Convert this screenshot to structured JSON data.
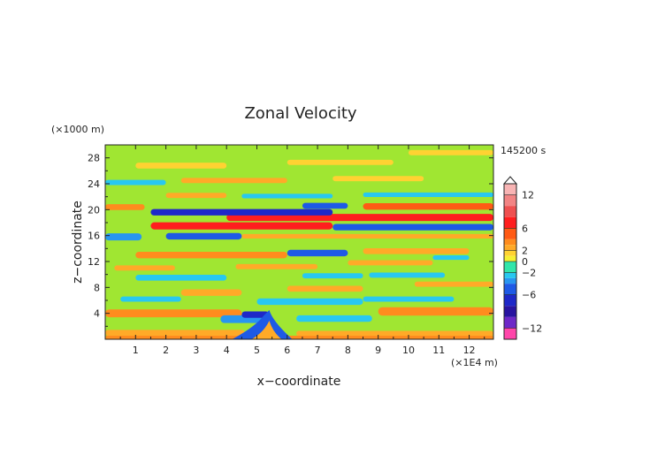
{
  "chart_data": {
    "type": "heatmap",
    "title": "Zonal Velocity",
    "xlabel": "x−coordinate",
    "ylabel": "z−coordinate",
    "x_unit": "(×1E4 m)",
    "y_unit": "(×1000 m)",
    "time_label": "145200 s",
    "xlim": [
      0,
      12.8
    ],
    "ylim": [
      0,
      30
    ],
    "x_ticks": [
      "1",
      "2",
      "3",
      "4",
      "5",
      "6",
      "7",
      "8",
      "9",
      "10",
      "11",
      "12"
    ],
    "y_ticks": [
      "4",
      "8",
      "12",
      "16",
      "20",
      "24",
      "28"
    ],
    "colorbar": {
      "range": [
        -14,
        14
      ],
      "labels": [
        "12",
        "6",
        "2",
        "0",
        "−2",
        "−6",
        "−12"
      ],
      "levels": [
        {
          "lo": 12,
          "hi": 14,
          "color": "#f8b4b4"
        },
        {
          "lo": 10,
          "hi": 12,
          "color": "#f28484"
        },
        {
          "lo": 8,
          "hi": 10,
          "color": "#ee5050"
        },
        {
          "lo": 6,
          "hi": 8,
          "color": "#ff1e1e"
        },
        {
          "lo": 4,
          "hi": 6,
          "color": "#ff5a14"
        },
        {
          "lo": 3,
          "hi": 4,
          "color": "#ff8c1e"
        },
        {
          "lo": 2,
          "hi": 3,
          "color": "#ffaa28"
        },
        {
          "lo": 1,
          "hi": 2,
          "color": "#ffd232"
        },
        {
          "lo": 0,
          "hi": 1,
          "color": "#f5f032"
        },
        {
          "lo": -1,
          "hi": 0,
          "color": "#a0e632"
        },
        {
          "lo": -2,
          "hi": 0,
          "color": "#32e6aa"
        },
        {
          "lo": -3,
          "hi": -2,
          "color": "#28c8f0"
        },
        {
          "lo": -4,
          "hi": -3,
          "color": "#2896f0"
        },
        {
          "lo": -6,
          "hi": -4,
          "color": "#1e5ae6"
        },
        {
          "lo": -8,
          "hi": -6,
          "color": "#1e28c8"
        },
        {
          "lo": -10,
          "hi": -8,
          "color": "#2814a0"
        },
        {
          "lo": -12,
          "hi": -10,
          "color": "#6e28c8"
        },
        {
          "lo": -14,
          "hi": -12,
          "color": "#ff46aa"
        }
      ]
    },
    "bands": [
      {
        "x0": 0,
        "x1": 12.8,
        "z": 0.3,
        "h": 0.5,
        "v": 3
      },
      {
        "x0": 0,
        "x1": 4.6,
        "z": 1.0,
        "h": 0.9,
        "v": 2.5
      },
      {
        "x0": 6.3,
        "x1": 12.8,
        "z": 0.9,
        "h": 0.8,
        "v": 2.5
      },
      {
        "x0": 0,
        "x1": 4.5,
        "z": 4.0,
        "h": 1.2,
        "v": 3
      },
      {
        "x0": 9.0,
        "x1": 12.8,
        "z": 4.3,
        "h": 1.3,
        "v": 3
      },
      {
        "x0": 3.8,
        "x1": 5.3,
        "z": 3.1,
        "h": 1.2,
        "v": -3.5
      },
      {
        "x0": 4.5,
        "x1": 5.4,
        "z": 3.8,
        "h": 1.0,
        "v": -7
      },
      {
        "x0": 6.3,
        "x1": 8.8,
        "z": 3.2,
        "h": 1.0,
        "v": -2.5
      },
      {
        "x0": 0.5,
        "x1": 2.5,
        "z": 6.2,
        "h": 0.8,
        "v": -2.5
      },
      {
        "x0": 5.0,
        "x1": 8.5,
        "z": 5.8,
        "h": 1.0,
        "v": -2.5
      },
      {
        "x0": 8.5,
        "x1": 11.5,
        "z": 6.2,
        "h": 0.8,
        "v": -2.5
      },
      {
        "x0": 2.5,
        "x1": 4.5,
        "z": 7.2,
        "h": 1.0,
        "v": 2.5
      },
      {
        "x0": 6.0,
        "x1": 8.5,
        "z": 7.8,
        "h": 0.9,
        "v": 2.5
      },
      {
        "x0": 10.2,
        "x1": 12.8,
        "z": 8.5,
        "h": 0.8,
        "v": 2.5
      },
      {
        "x0": 1.0,
        "x1": 4.0,
        "z": 9.5,
        "h": 0.9,
        "v": -2.5
      },
      {
        "x0": 6.5,
        "x1": 8.5,
        "z": 9.8,
        "h": 0.8,
        "v": -2.5
      },
      {
        "x0": 8.7,
        "x1": 11.2,
        "z": 9.9,
        "h": 0.8,
        "v": -2.5
      },
      {
        "x0": 0.3,
        "x1": 2.3,
        "z": 11.0,
        "h": 0.8,
        "v": 2.5
      },
      {
        "x0": 4.3,
        "x1": 7.0,
        "z": 11.2,
        "h": 0.8,
        "v": 2.5
      },
      {
        "x0": 8.0,
        "x1": 10.8,
        "z": 11.8,
        "h": 0.8,
        "v": 2.5
      },
      {
        "x0": 1.0,
        "x1": 6.0,
        "z": 13.0,
        "h": 1.0,
        "v": 3
      },
      {
        "x0": 6.0,
        "x1": 8.0,
        "z": 13.3,
        "h": 1.0,
        "v": -6
      },
      {
        "x0": 8.5,
        "x1": 12.0,
        "z": 13.6,
        "h": 0.9,
        "v": 2.5
      },
      {
        "x0": 10.8,
        "x1": 12.0,
        "z": 12.6,
        "h": 0.7,
        "v": -2.5
      },
      {
        "x0": 0,
        "x1": 1.2,
        "z": 15.8,
        "h": 1.1,
        "v": -4
      },
      {
        "x0": 2.0,
        "x1": 4.5,
        "z": 15.9,
        "h": 1.0,
        "v": -5
      },
      {
        "x0": 4.5,
        "x1": 12.8,
        "z": 15.9,
        "h": 0.7,
        "v": 2.5
      },
      {
        "x0": 1.5,
        "x1": 7.5,
        "z": 17.5,
        "h": 1.1,
        "v": 6
      },
      {
        "x0": 7.5,
        "x1": 12.8,
        "z": 17.3,
        "h": 1.0,
        "v": -6
      },
      {
        "x0": 4.0,
        "x1": 12.8,
        "z": 18.8,
        "h": 1.1,
        "v": 6
      },
      {
        "x0": 1.5,
        "x1": 7.5,
        "z": 19.6,
        "h": 1.0,
        "v": -7
      },
      {
        "x0": 6.5,
        "x1": 8.0,
        "z": 20.6,
        "h": 0.9,
        "v": -6
      },
      {
        "x0": 8.5,
        "x1": 12.8,
        "z": 20.5,
        "h": 1.0,
        "v": 4
      },
      {
        "x0": 0,
        "x1": 1.3,
        "z": 20.4,
        "h": 0.9,
        "v": 3
      },
      {
        "x0": 2.0,
        "x1": 4.0,
        "z": 22.2,
        "h": 0.8,
        "v": 2.5
      },
      {
        "x0": 4.5,
        "x1": 7.5,
        "z": 22.1,
        "h": 0.7,
        "v": -2.5
      },
      {
        "x0": 8.5,
        "x1": 12.8,
        "z": 22.3,
        "h": 0.7,
        "v": -2.5
      },
      {
        "x0": 0,
        "x1": 2.0,
        "z": 24.2,
        "h": 0.8,
        "v": -2.5
      },
      {
        "x0": 2.5,
        "x1": 6.0,
        "z": 24.5,
        "h": 0.8,
        "v": 2.5
      },
      {
        "x0": 7.5,
        "x1": 10.5,
        "z": 24.8,
        "h": 0.8,
        "v": 1.5
      },
      {
        "x0": 1.0,
        "x1": 4.0,
        "z": 26.8,
        "h": 0.9,
        "v": 1.5
      },
      {
        "x0": 6.0,
        "x1": 9.5,
        "z": 27.3,
        "h": 0.8,
        "v": 1.5
      },
      {
        "x0": 10.0,
        "x1": 12.8,
        "z": 28.8,
        "h": 0.8,
        "v": 1.5
      }
    ]
  }
}
